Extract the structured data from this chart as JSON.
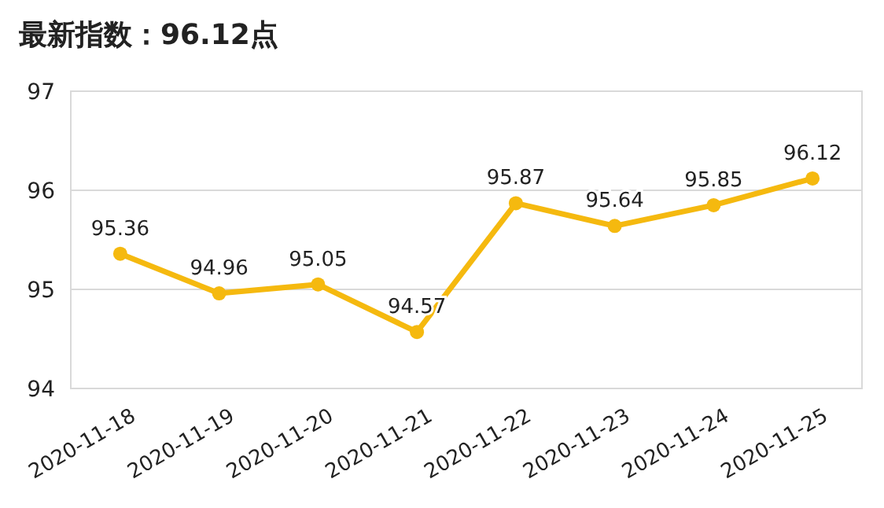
{
  "chart_data": {
    "type": "line",
    "title": "最新指数：96.12点",
    "categories": [
      "2020-11-18",
      "2020-11-19",
      "2020-11-20",
      "2020-11-21",
      "2020-11-22",
      "2020-11-23",
      "2020-11-24",
      "2020-11-25"
    ],
    "series": [
      {
        "color": "#f5b90f",
        "values": [
          95.36,
          94.96,
          95.05,
          94.57,
          95.87,
          95.64,
          95.85,
          96.12
        ]
      }
    ],
    "ylim": [
      94,
      97
    ],
    "yticks": [
      94,
      95,
      96,
      97
    ],
    "grid": "y",
    "marker": "circle",
    "line_style": "solid",
    "data_labels": true
  }
}
